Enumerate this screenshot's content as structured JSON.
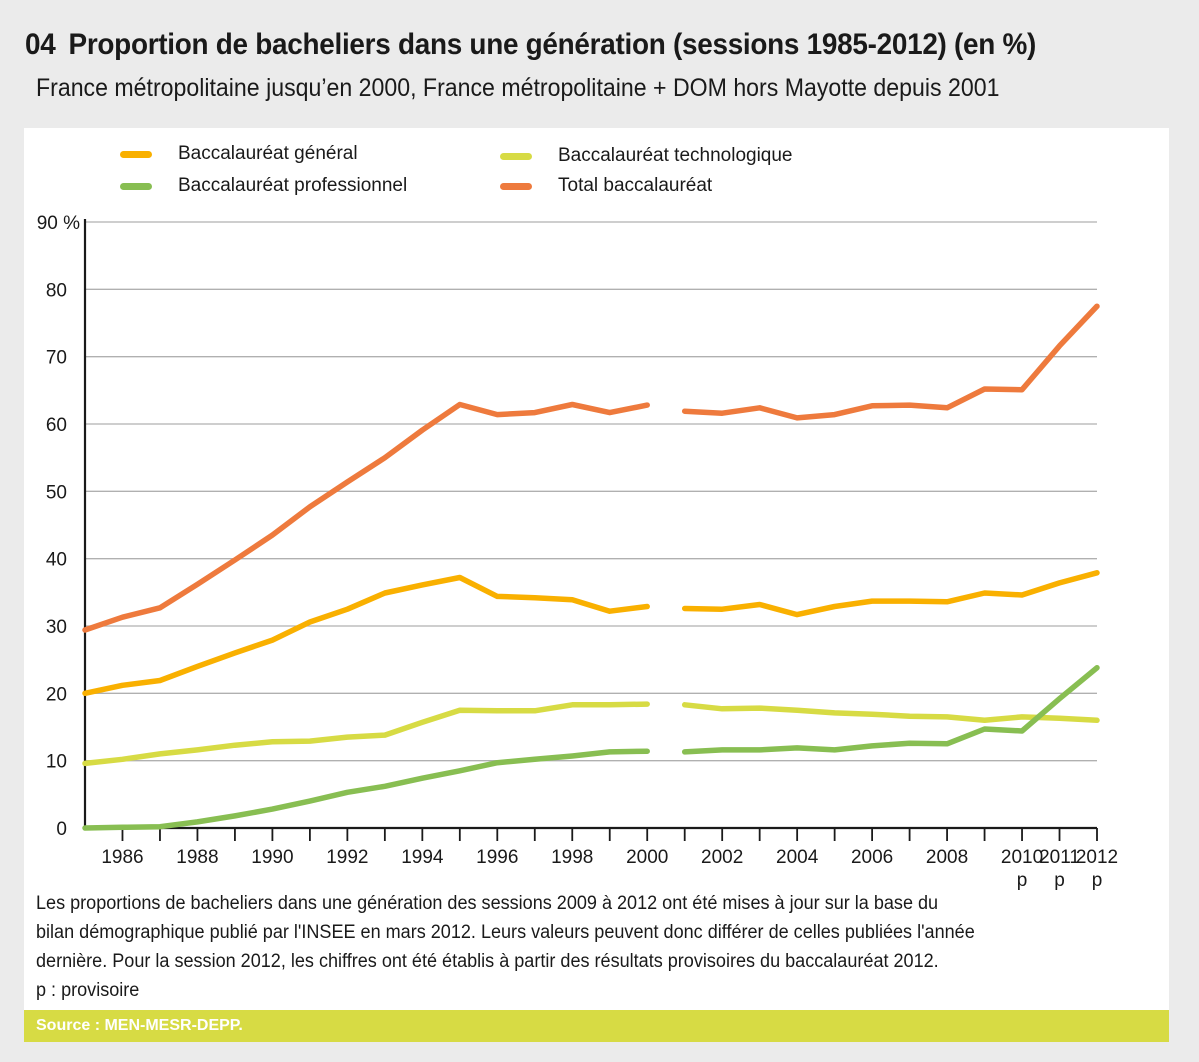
{
  "header": {
    "figure_number": "04",
    "title": "Proportion de bacheliers dans une génération (sessions 1985-2012) (en %)",
    "subtitle": "France métropolitaine jusqu’en 2000, France métropolitaine + DOM hors Mayotte depuis 2001"
  },
  "legend": [
    {
      "label": "Baccalauréat général",
      "color": "#f9b000"
    },
    {
      "label": "Baccalauréat technologique",
      "color": "#d7db44"
    },
    {
      "label": "Baccalauréat professionnel",
      "color": "#88be52"
    },
    {
      "label": "Total baccalauréat",
      "color": "#ee7a3d"
    }
  ],
  "notes": [
    "Les proportions de bacheliers dans une génération des sessions 2009 à 2012 ont été mises à jour sur la base du",
    " bilan démographique publié par l'INSEE en mars 2012. Leurs valeurs peuvent donc différer de celles publiées l'année",
    "dernière. Pour la session 2012, les chiffres ont été établis à partir des résultats provisoires du baccalauréat 2012.",
    "p : provisoire"
  ],
  "source": "Source : MEN-MESR-DEPP.",
  "chart_data": {
    "type": "line",
    "title": "Proportion de bacheliers dans une génération (sessions 1985-2012) (en %)",
    "xlabel": "",
    "ylabel": "%",
    "x": [
      1985,
      1986,
      1987,
      1988,
      1989,
      1990,
      1991,
      1992,
      1993,
      1994,
      1995,
      1996,
      1997,
      1998,
      1999,
      2000,
      2001,
      2002,
      2003,
      2004,
      2005,
      2006,
      2007,
      2008,
      2009,
      2010,
      2011,
      2012
    ],
    "break_between": [
      2000,
      2001
    ],
    "ylim": [
      0,
      90
    ],
    "yticks": [
      0,
      10,
      20,
      30,
      40,
      50,
      60,
      70,
      80,
      90
    ],
    "ytick_labels": [
      "0",
      "10",
      "20",
      "30",
      "40",
      "50",
      "60",
      "70",
      "80",
      "90 %"
    ],
    "xtick_labels": [
      {
        "year": 1986,
        "label": "1986",
        "sub": ""
      },
      {
        "year": 1988,
        "label": "1988",
        "sub": ""
      },
      {
        "year": 1990,
        "label": "1990",
        "sub": ""
      },
      {
        "year": 1992,
        "label": "1992",
        "sub": ""
      },
      {
        "year": 1994,
        "label": "1994",
        "sub": ""
      },
      {
        "year": 1996,
        "label": "1996",
        "sub": ""
      },
      {
        "year": 1998,
        "label": "1998",
        "sub": ""
      },
      {
        "year": 2000,
        "label": "2000",
        "sub": ""
      },
      {
        "year": 2002,
        "label": "2002",
        "sub": ""
      },
      {
        "year": 2004,
        "label": "2004",
        "sub": ""
      },
      {
        "year": 2006,
        "label": "2006",
        "sub": ""
      },
      {
        "year": 2008,
        "label": "2008",
        "sub": ""
      },
      {
        "year": 2010,
        "label": "2010",
        "sub": "p"
      },
      {
        "year": 2011,
        "label": "2011",
        "sub": "p"
      },
      {
        "year": 2012,
        "label": "2012",
        "sub": "p"
      }
    ],
    "grid": true,
    "legend_position": "top",
    "series": [
      {
        "name": "Total baccalauréat",
        "color": "#ee7a3d",
        "values": [
          29.4,
          31.3,
          32.7,
          36.2,
          39.8,
          43.5,
          47.7,
          51.4,
          55.0,
          59.1,
          62.9,
          61.4,
          61.7,
          62.9,
          61.7,
          62.8,
          61.9,
          61.6,
          62.4,
          60.9,
          61.4,
          62.7,
          62.8,
          62.4,
          65.2,
          65.1,
          71.6,
          77.5
        ]
      },
      {
        "name": "Baccalauréat général",
        "color": "#f9b000",
        "values": [
          20.0,
          21.2,
          21.9,
          24.0,
          26.0,
          27.9,
          30.6,
          32.5,
          34.9,
          36.1,
          37.2,
          34.4,
          34.2,
          33.9,
          32.2,
          32.9,
          32.6,
          32.5,
          33.2,
          31.7,
          32.9,
          33.7,
          33.7,
          33.6,
          34.9,
          34.6,
          36.4,
          37.9
        ]
      },
      {
        "name": "Baccalauréat technologique",
        "color": "#d7db44",
        "values": [
          9.6,
          10.2,
          11.0,
          11.6,
          12.3,
          12.8,
          12.9,
          13.5,
          13.8,
          15.7,
          17.5,
          17.4,
          17.4,
          18.3,
          18.3,
          18.4,
          18.3,
          17.7,
          17.8,
          17.5,
          17.1,
          16.9,
          16.6,
          16.5,
          16.0,
          16.5,
          16.3,
          16.0
        ]
      },
      {
        "name": "Baccalauréat professionnel",
        "color": "#88be52",
        "values": [
          0.0,
          0.1,
          0.2,
          0.9,
          1.8,
          2.8,
          4.0,
          5.3,
          6.2,
          7.4,
          8.5,
          9.7,
          10.2,
          10.7,
          11.3,
          11.4,
          11.3,
          11.6,
          11.6,
          11.9,
          11.6,
          12.2,
          12.6,
          12.5,
          14.7,
          14.4,
          19.2,
          23.8
        ]
      }
    ]
  }
}
